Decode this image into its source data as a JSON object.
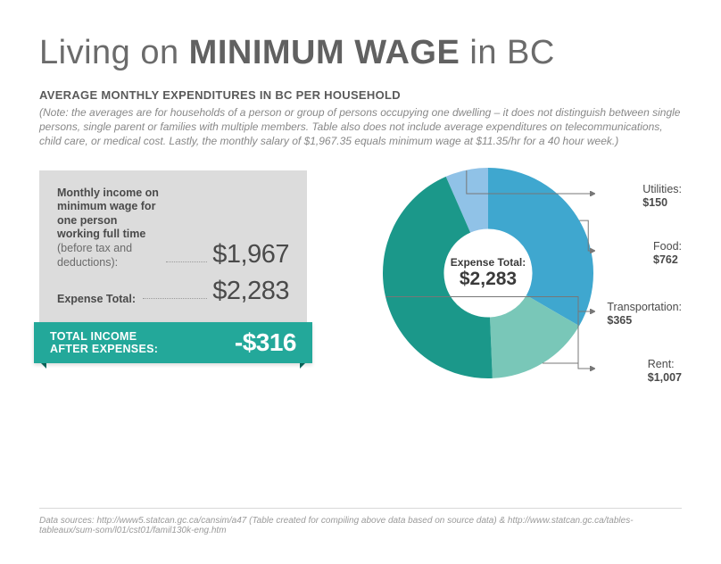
{
  "title": {
    "pre": "Living on ",
    "bold": "MINIMUM WAGE",
    "post": " in BC"
  },
  "subhead": "AVERAGE MONTHLY EXPENDITURES IN BC PER HOUSEHOLD",
  "note": "(Note: the averages are for households of a person or group of persons occupying one dwelling – it does not distinguish between single persons, single parent or families with multiple members. Table also does not include average expenditures on telecommunications, child care, or medical cost. Lastly, the monthly salary of $1,967.35 equals minimum wage at $11.35/hr for a 40 hour week.)",
  "income": {
    "label_main": "Monthly income on minimum wage for one person working full time",
    "label_sub": "(before tax and deductions):",
    "value": "$1,967"
  },
  "expense_total_row": {
    "label": "Expense Total:",
    "value": "$2,283"
  },
  "ribbon": {
    "label_l1": "TOTAL INCOME",
    "label_l2": "AFTER EXPENSES:",
    "value": "-$316"
  },
  "donut": {
    "type": "pie",
    "center_label": "Expense Total:",
    "center_value": "$2,283",
    "hole_ratio": 0.42,
    "background_color": "#ffffff",
    "slices": [
      {
        "name": "Utilities",
        "value": 150,
        "label": "Utilities:",
        "amount": "$150",
        "color": "#90c2e7"
      },
      {
        "name": "Food",
        "value": 762,
        "label": "Food:",
        "amount": "$762",
        "color": "#3fa7cf"
      },
      {
        "name": "Transportation",
        "value": 365,
        "label": "Transportation:",
        "amount": "$365",
        "color": "#79c7b8"
      },
      {
        "name": "Rent",
        "value": 1007,
        "label": "Rent:",
        "amount": "$1,007",
        "color": "#1b988a"
      }
    ],
    "start_angle_deg": -90
  },
  "colors": {
    "ribbon_bg": "#23a89a",
    "ribbon_shadow": "#0d6b60",
    "box_bg": "#dcdcdc",
    "text_primary": "#5a5a5a",
    "leader": "#777777"
  },
  "sources": "Data sources: http://www5.statcan.gc.ca/cansim/a47 (Table created for compiling above data based on source data) & http://www.statcan.gc.ca/tables-tableaux/sum-som/l01/cst01/famil130k-eng.htm"
}
